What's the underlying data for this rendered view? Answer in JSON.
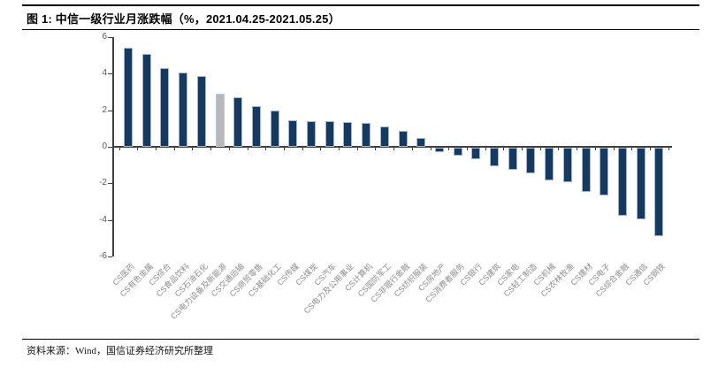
{
  "figure": {
    "title": "图 1: 中信一级行业月涨跌幅（%，2021.04.25-2021.05.25）",
    "source": "资料来源：Wind，国信证券经济研究所整理"
  },
  "chart_data": {
    "type": "bar",
    "title": "中信一级行业月涨跌幅",
    "unit": "%",
    "period": "2021.04.25-2021.05.25",
    "categories": [
      "CS医药",
      "CS有色金属",
      "CS综合",
      "CS食品饮料",
      "CS石油石化",
      "CS电力设备及新能源",
      "CS交通运输",
      "CS商贸零售",
      "CS基础化工",
      "CS传媒",
      "CS煤炭",
      "CS汽车",
      "CS电力及公用事业",
      "CS计算机",
      "CS国防军工",
      "CS非银行金融",
      "CS纺织服装",
      "CS房地产",
      "CS消费者服务",
      "CS银行",
      "CS建筑",
      "CS家电",
      "CS轻工制造",
      "CS机械",
      "CS农林牧渔",
      "CS建材",
      "CS电子",
      "CS综合金融",
      "CS通信",
      "CS钢铁"
    ],
    "values": [
      5.4,
      5.05,
      4.3,
      4.05,
      3.85,
      2.9,
      2.7,
      2.2,
      2.0,
      1.45,
      1.4,
      1.4,
      1.35,
      1.3,
      1.1,
      0.85,
      0.5,
      -0.25,
      -0.45,
      -0.65,
      -1.0,
      -1.2,
      -1.4,
      -1.8,
      -1.9,
      -2.4,
      -2.6,
      -3.7,
      -3.9,
      -4.85
    ],
    "highlight_category": "CS电力设备及新能源",
    "highlight_index": 5,
    "colors": {
      "bar": "#163A5F",
      "highlight": "#B8B8B8",
      "axis": "#404040",
      "tick_label": "#595959",
      "category_label": "#8C8C8C"
    },
    "ylim": [
      -6,
      6
    ],
    "y_ticks": [
      6,
      4,
      2,
      0,
      -2,
      -4,
      -6
    ],
    "grid": false,
    "legend": false,
    "xlabel": "",
    "ylabel": ""
  }
}
